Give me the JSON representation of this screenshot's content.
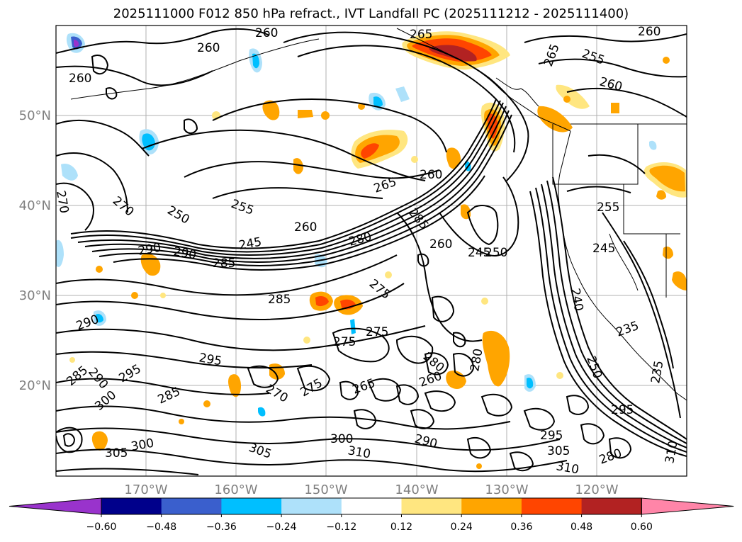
{
  "title": "2025111000 F012 850 hPa refract., IVT Landfall PC (2025111212 - 2025111400)",
  "lat_labels": [
    "50°N",
    "40°N",
    "30°N",
    "20°N"
  ],
  "lon_labels": [
    "170°W",
    "160°W",
    "150°W",
    "140°W",
    "130°W",
    "120°W"
  ],
  "contour_labels": [
    "260",
    "260",
    "260",
    "260",
    "255",
    "260",
    "265",
    "265",
    "270",
    "270",
    "250",
    "255",
    "260",
    "265",
    "260",
    "285",
    "245",
    "290",
    "290",
    "285",
    "280",
    "260",
    "245",
    "250",
    "275",
    "255",
    "245",
    "240",
    "285",
    "290",
    "275",
    "275",
    "280",
    "295",
    "285",
    "295",
    "290",
    "280",
    "270",
    "275",
    "265",
    "260",
    "250",
    "235",
    "235",
    "285",
    "295",
    "300",
    "305",
    "300",
    "305",
    "300",
    "310",
    "290",
    "305",
    "295",
    "310",
    "280",
    "310"
  ],
  "colorbar": {
    "tick_labels": [
      "−0.60",
      "−0.48",
      "−0.36",
      "−0.24",
      "−0.12",
      "0.12",
      "0.24",
      "0.36",
      "0.48",
      "0.60"
    ],
    "colors": [
      "#9933cc",
      "#00008b",
      "#3a5fcd",
      "#00bfff",
      "#aee1fa",
      "#ffffff",
      "#ffe680",
      "#ffa500",
      "#ff4500",
      "#b22222",
      "#ff85a8"
    ]
  }
}
